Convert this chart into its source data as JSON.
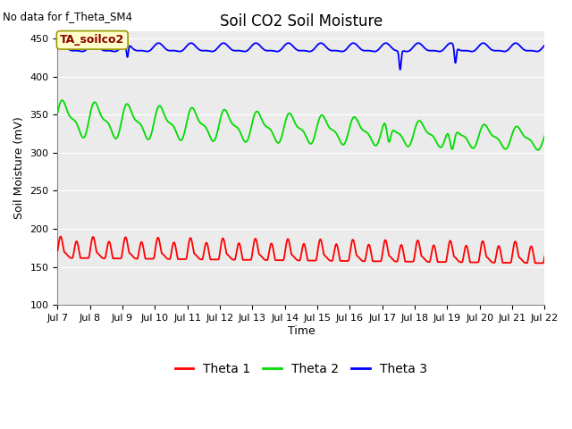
{
  "title": "Soil CO2 Soil Moisture",
  "no_data_text": "No data for f_Theta_SM4",
  "ylabel": "Soil Moisture (mV)",
  "xlabel": "Time",
  "annotation": "TA_soilco2",
  "ylim": [
    100,
    460
  ],
  "yticks": [
    100,
    150,
    200,
    250,
    300,
    350,
    400,
    450
  ],
  "xtick_labels": [
    "Jul 7",
    "Jul 8",
    "Jul 9",
    "Jul 10",
    "Jul 11",
    "Jul 12",
    "Jul 13",
    "Jul 14",
    "Jul 15",
    "Jul 16",
    "Jul 17",
    "Jul 18",
    "Jul 19",
    "Jul 20",
    "Jul 21",
    "Jul 22"
  ],
  "bg_color": "#ebebeb",
  "grid_color": "#ffffff",
  "legend_entries": [
    "Theta 1",
    "Theta 2",
    "Theta 3"
  ],
  "legend_colors": [
    "red",
    "#00cc00",
    "blue"
  ],
  "title_fontsize": 12,
  "tick_fontsize": 8,
  "label_fontsize": 9
}
